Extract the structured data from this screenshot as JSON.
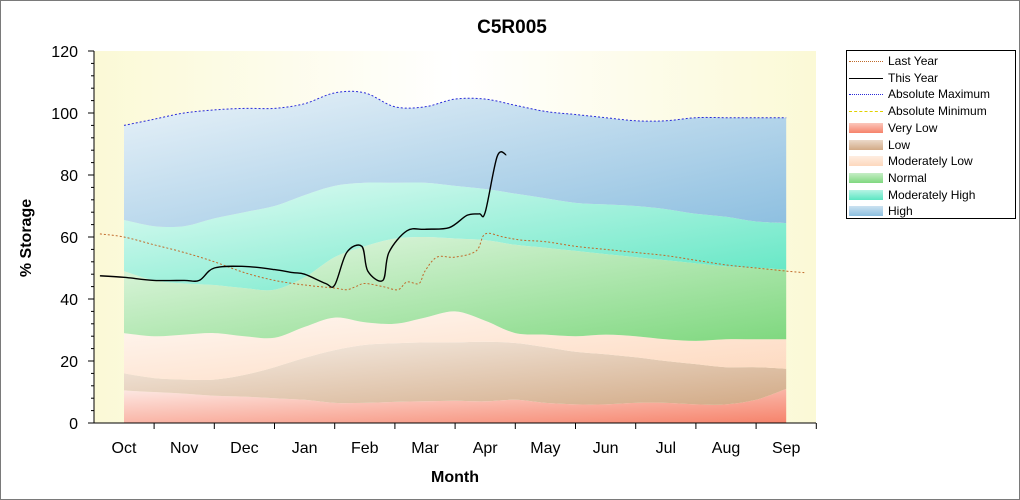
{
  "chart_data": {
    "type": "area",
    "title": "C5R005",
    "xlabel": "Month",
    "ylabel": "% Storage",
    "ylim": [
      0,
      120
    ],
    "yticks": [
      0,
      20,
      40,
      60,
      80,
      100,
      120
    ],
    "categories": [
      "Oct",
      "Nov",
      "Dec",
      "Jan",
      "Feb",
      "Mar",
      "Apr",
      "May",
      "Jun",
      "Jul",
      "Aug",
      "Sep"
    ],
    "legend_position": "right",
    "x": [
      0,
      0.5,
      1,
      1.5,
      2,
      2.5,
      3,
      3.5,
      4,
      4.5,
      5,
      5.5,
      6,
      6.5,
      7,
      7.5,
      8,
      8.5,
      9,
      9.5,
      10,
      10.5,
      11
    ],
    "bands": [
      {
        "name": "Very Low",
        "color": "#f6836b",
        "lower": [
          0,
          0,
          0,
          0,
          0,
          0,
          0,
          0,
          0,
          0,
          0,
          0,
          0,
          0,
          0,
          0,
          0,
          0,
          0,
          0,
          0,
          0,
          0
        ],
        "upper": [
          10.5,
          10,
          9.5,
          8.8,
          8.5,
          8,
          7.5,
          6.5,
          6.5,
          6.8,
          7,
          7.2,
          7,
          7.5,
          6.5,
          6,
          6,
          6.5,
          6.5,
          6,
          6,
          7.5,
          11
        ]
      },
      {
        "name": "Low",
        "color": "#d2aa86",
        "upper": [
          16,
          14.5,
          14,
          14,
          15.5,
          18,
          21,
          23.5,
          25.2,
          25.7,
          26,
          26,
          26.2,
          25.8,
          24.5,
          23,
          22.2,
          21.2,
          20,
          19,
          18,
          18,
          17.5
        ]
      },
      {
        "name": "Moderately Low",
        "color": "#fdd8bd",
        "upper": [
          29,
          28,
          28.5,
          29,
          28,
          27.5,
          31,
          34,
          32.5,
          32,
          34,
          36,
          33,
          29,
          28.5,
          28,
          28.5,
          28,
          27,
          26.5,
          27,
          27,
          27
        ]
      },
      {
        "name": "Normal",
        "color": "#7fd87f",
        "upper": [
          49,
          46,
          45,
          44.5,
          43.5,
          43,
          47,
          53.5,
          57,
          59.5,
          60,
          59.5,
          59,
          57.5,
          56.5,
          55.5,
          54.5,
          53.5,
          52.5,
          51.5,
          50.5,
          50,
          49.5
        ]
      },
      {
        "name": "Moderately High",
        "color": "#5ce6c2",
        "upper": [
          65.5,
          63.5,
          63.5,
          66,
          68,
          70,
          73.5,
          76.5,
          77.5,
          77.5,
          77.5,
          76.5,
          75.5,
          74,
          72.5,
          71,
          70.5,
          70,
          69,
          67.5,
          66.5,
          65,
          64.5
        ]
      },
      {
        "name": "High",
        "color": "#8dbfe0",
        "upper": [
          96,
          98,
          100,
          101,
          101.5,
          101.5,
          103,
          106.5,
          106.5,
          102,
          102,
          104.5,
          104.5,
          102.5,
          100.5,
          99.5,
          98.5,
          97.5,
          97.5,
          98.5,
          98.5,
          98.5,
          98.5
        ]
      }
    ],
    "series": [
      {
        "name": "Last Year",
        "color": "#c06a2a",
        "style": "dotted",
        "x": [
          -0.4,
          0,
          0.5,
          1,
          1.5,
          2,
          2.5,
          3,
          3.5,
          3.7,
          3.85,
          4,
          4.3,
          4.55,
          4.7,
          4.9,
          5,
          5.2,
          5.5,
          5.85,
          6,
          6.3,
          6.6,
          7,
          7.5,
          8,
          8.5,
          9,
          9.5,
          10,
          10.5,
          11,
          11.3
        ],
        "y": [
          61,
          60,
          57.5,
          55,
          52,
          48.5,
          46,
          44.5,
          43.5,
          43,
          44,
          45,
          44,
          43,
          45.5,
          45,
          49,
          53.5,
          53.5,
          55.5,
          61,
          60,
          59,
          58.5,
          57,
          56,
          55,
          54,
          52.5,
          51,
          50,
          49,
          48.5
        ]
      },
      {
        "name": "This Year",
        "color": "#000000",
        "style": "solid",
        "x": [
          -0.4,
          0,
          0.5,
          1,
          1.25,
          1.5,
          2,
          2.5,
          2.8,
          3,
          3.35,
          3.5,
          3.7,
          3.95,
          4.05,
          4.3,
          4.4,
          4.7,
          5,
          5.4,
          5.7,
          5.9,
          6,
          6.2,
          6.35
        ],
        "y": [
          47.5,
          47,
          46,
          46,
          46,
          50,
          50.5,
          49.5,
          48.5,
          48,
          45,
          44.5,
          55,
          57,
          49,
          46,
          55,
          62,
          62.5,
          63,
          67,
          67.5,
          68,
          86,
          86.5
        ]
      },
      {
        "name": "Absolute Maximum",
        "color": "#2a2ad8",
        "style": "dotted",
        "x": [
          0,
          0.5,
          1,
          1.5,
          2,
          2.5,
          3,
          3.5,
          4,
          4.5,
          5,
          5.5,
          6,
          6.5,
          7,
          7.5,
          8,
          8.5,
          9,
          9.5,
          10,
          10.5,
          11
        ],
        "y": [
          96,
          98,
          100,
          101,
          101.5,
          101.5,
          103,
          106.5,
          106.5,
          102,
          102,
          104.5,
          104.5,
          102.5,
          100.5,
          99.5,
          98.5,
          97.5,
          97.5,
          98.5,
          98.5,
          98.5,
          98.5
        ]
      },
      {
        "name": "Absolute Minimum",
        "color": "#e0d000",
        "style": "dashed",
        "x": [],
        "y": []
      }
    ]
  }
}
